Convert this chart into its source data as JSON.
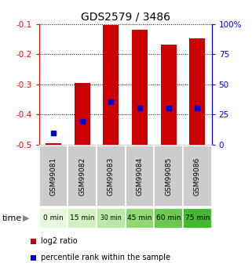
{
  "title": "GDS2579 / 3486",
  "samples": [
    "GSM99081",
    "GSM99082",
    "GSM99083",
    "GSM99084",
    "GSM99085",
    "GSM99086"
  ],
  "time_labels": [
    "0 min",
    "15 min",
    "30 min",
    "45 min",
    "60 min",
    "75 min"
  ],
  "time_colors": [
    "#e8f8e0",
    "#d0f0c0",
    "#b8e8a8",
    "#90d870",
    "#6cc850",
    "#44b830"
  ],
  "bar_tops": [
    -0.495,
    -0.295,
    -0.102,
    -0.118,
    -0.168,
    -0.148
  ],
  "bar_bottom": -0.5,
  "blue_sq_y": [
    -0.462,
    -0.422,
    -0.358,
    -0.378,
    -0.378,
    -0.378
  ],
  "ylim_left": [
    -0.5,
    -0.1
  ],
  "ylim_right": [
    0,
    100
  ],
  "yticks_left": [
    -0.5,
    -0.4,
    -0.3,
    -0.2,
    -0.1
  ],
  "ytick_labels_left": [
    "-0.5",
    "-0.4",
    "-0.3",
    "-0.2",
    "-0.1"
  ],
  "yticks_right": [
    0,
    25,
    50,
    75,
    100
  ],
  "ytick_labels_right": [
    "0",
    "25",
    "50",
    "75",
    "100%"
  ],
  "bar_color": "#cc0000",
  "blue_color": "#0000cc",
  "bar_width": 0.55,
  "legend_red_label": "log2 ratio",
  "legend_blue_label": "percentile rank within the sample"
}
